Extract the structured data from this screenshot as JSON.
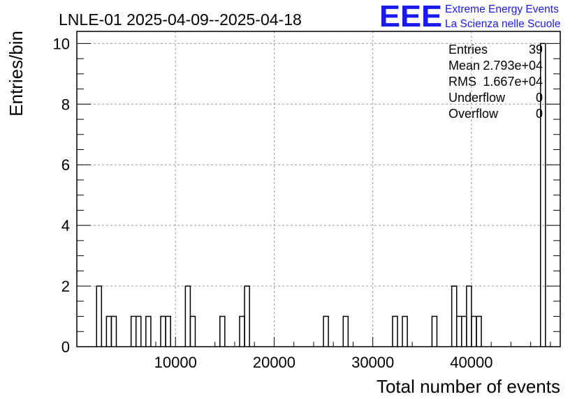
{
  "chart_data": {
    "type": "histogram",
    "title": "LNLE-01 2025-04-09--2025-04-18",
    "xlabel": "Total number of events",
    "ylabel": "Entries/bin",
    "xlim": [
      0,
      49000
    ],
    "ylim": [
      0,
      10.4
    ],
    "grid": true,
    "bin_width": 500,
    "x_ticks": [
      10000,
      20000,
      30000,
      40000
    ],
    "x_tick_labels": [
      "10000",
      "20000",
      "30000",
      "40000"
    ],
    "y_ticks": [
      0,
      2,
      4,
      6,
      8,
      10
    ],
    "y_tick_labels": [
      "0",
      "2",
      "4",
      "6",
      "8",
      "10"
    ],
    "bins": [
      {
        "x0": 2000,
        "y": 2
      },
      {
        "x0": 3000,
        "y": 1
      },
      {
        "x0": 3500,
        "y": 1
      },
      {
        "x0": 5500,
        "y": 1
      },
      {
        "x0": 6000,
        "y": 1
      },
      {
        "x0": 7000,
        "y": 1
      },
      {
        "x0": 8500,
        "y": 1
      },
      {
        "x0": 9000,
        "y": 1
      },
      {
        "x0": 11000,
        "y": 2
      },
      {
        "x0": 11500,
        "y": 1
      },
      {
        "x0": 14500,
        "y": 1
      },
      {
        "x0": 16500,
        "y": 1
      },
      {
        "x0": 17000,
        "y": 2
      },
      {
        "x0": 25000,
        "y": 1
      },
      {
        "x0": 27000,
        "y": 1
      },
      {
        "x0": 32000,
        "y": 1
      },
      {
        "x0": 33000,
        "y": 1
      },
      {
        "x0": 36000,
        "y": 1
      },
      {
        "x0": 38000,
        "y": 2
      },
      {
        "x0": 38500,
        "y": 1
      },
      {
        "x0": 39000,
        "y": 1
      },
      {
        "x0": 39500,
        "y": 2
      },
      {
        "x0": 40000,
        "y": 1
      },
      {
        "x0": 40500,
        "y": 1
      },
      {
        "x0": 47000,
        "y": 10
      }
    ]
  },
  "stats_box": {
    "rows": [
      {
        "label": "Entries",
        "value": "39"
      },
      {
        "label": "Mean",
        "value": "2.793e+04"
      },
      {
        "label": "RMS",
        "value": "1.667e+04"
      },
      {
        "label": "Underflow",
        "value": "0"
      },
      {
        "label": "Overflow",
        "value": "0"
      }
    ]
  },
  "logo": {
    "mark": "EEE",
    "line1": "Extreme Energy Events",
    "line2": "La Scienza nelle Scuole",
    "color": "#1a1aee"
  }
}
